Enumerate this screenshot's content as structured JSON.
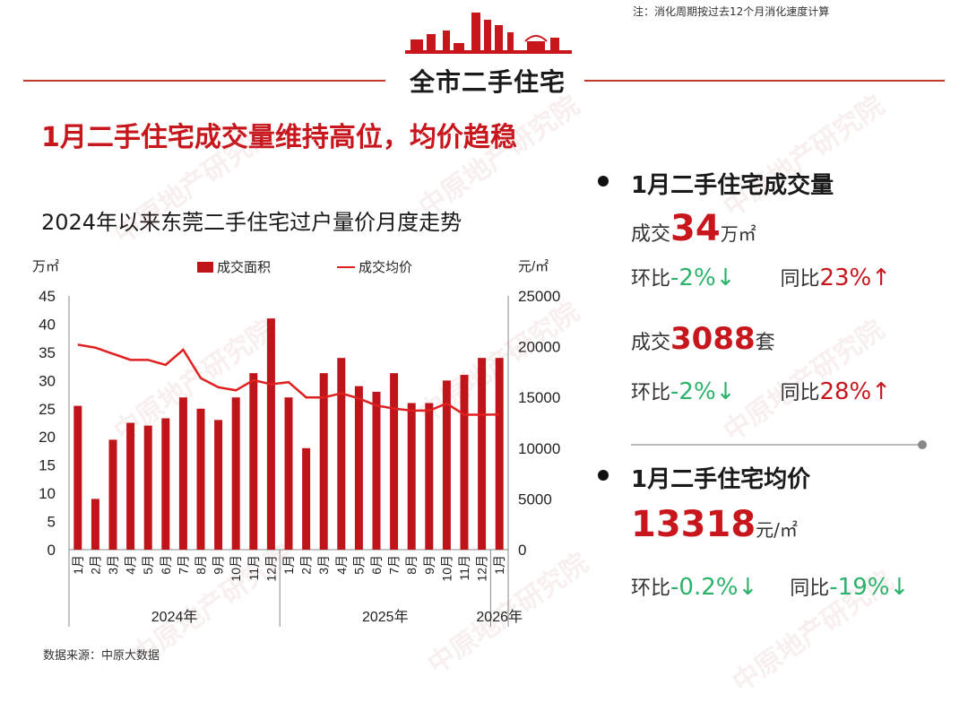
{
  "note": "注：消化周期按过去12个月消化速度计算",
  "section_title": "全市二手住宅",
  "headline": "1月二手住宅成交量维持高位，均价趋稳",
  "watermark": "中原地产研究院",
  "source": "数据来源：中原大数据",
  "colors": {
    "bar": "#c0141b",
    "line": "#e02020",
    "accent": "#c8161d",
    "down": "#2bb36b"
  },
  "chart_data": {
    "type": "bar",
    "title": "2024年以来东莞二手住宅过户量价月度走势",
    "left_unit": "万㎡",
    "right_unit": "元/㎡",
    "left_ticks": [
      "45",
      "40",
      "35",
      "30",
      "25",
      "20",
      "15",
      "10",
      "5",
      "0"
    ],
    "right_ticks": [
      "25000",
      "20000",
      "15000",
      "10000",
      "5000",
      "0"
    ],
    "ylim_left": [
      0,
      45
    ],
    "ylim_right": [
      0,
      25000
    ],
    "categories": [
      "1月",
      "2月",
      "3月",
      "4月",
      "5月",
      "6月",
      "7月",
      "8月",
      "9月",
      "10月",
      "11月",
      "12月",
      "1月",
      "2月",
      "3月",
      "4月",
      "5月",
      "6月",
      "7月",
      "8月",
      "9月",
      "10月",
      "11月",
      "12月",
      "1月"
    ],
    "year_groups": [
      {
        "label": "2024年",
        "count": 12
      },
      {
        "label": "2025年",
        "count": 12
      },
      {
        "label": "2026年",
        "count": 1
      }
    ],
    "series": [
      {
        "name": "成交面积",
        "kind": "bar",
        "axis": "left",
        "values": [
          25.5,
          9,
          19.5,
          22.5,
          22,
          23.3,
          27,
          25,
          23,
          27,
          31.3,
          41,
          27,
          18,
          31.3,
          34,
          29,
          28,
          31.3,
          26,
          26,
          30,
          31,
          34,
          34
        ]
      },
      {
        "name": "成交均价",
        "kind": "line",
        "axis": "right",
        "values": [
          20200,
          19900,
          19300,
          18700,
          18700,
          18200,
          19700,
          16900,
          16000,
          15700,
          16700,
          16300,
          16500,
          15000,
          15000,
          15400,
          14900,
          14200,
          13900,
          13700,
          13700,
          14400,
          13300,
          13300,
          13318
        ]
      }
    ]
  },
  "stats": {
    "volume": {
      "title": "1月二手住宅成交量",
      "area_prefix": "成交",
      "area_value": "34",
      "area_unit": "万㎡",
      "area_mom_label": "环比",
      "area_mom": "-2%",
      "area_mom_arrow": "↓",
      "area_yoy_label": "同比",
      "area_yoy": "23%",
      "area_yoy_arrow": "↑",
      "units_prefix": "成交",
      "units_value": "3088",
      "units_unit": "套",
      "units_mom_label": "环比",
      "units_mom": "-2%",
      "units_mom_arrow": "↓",
      "units_yoy_label": "同比",
      "units_yoy": "28%",
      "units_yoy_arrow": "↑"
    },
    "price": {
      "title": "1月二手住宅均价",
      "value": "13318",
      "unit": "元/㎡",
      "mom_label": "环比",
      "mom": "-0.2%",
      "mom_arrow": "↓",
      "yoy_label": "同比",
      "yoy": "-19%",
      "yoy_arrow": "↓"
    }
  }
}
